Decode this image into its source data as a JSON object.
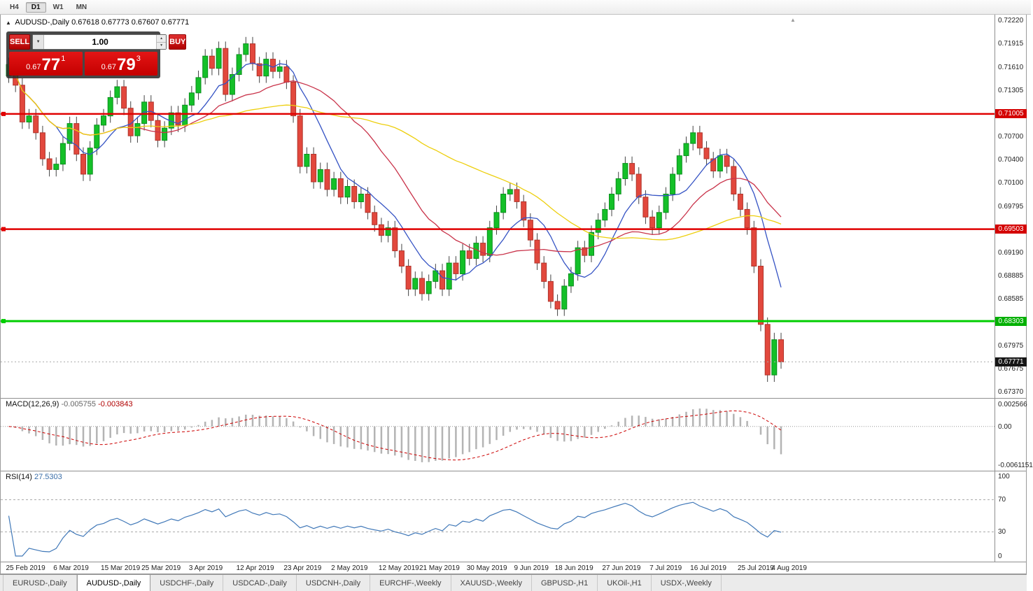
{
  "toolbar": {
    "timeframes": [
      {
        "label": "H4",
        "active": false
      },
      {
        "label": "D1",
        "active": true
      },
      {
        "label": "W1",
        "active": false
      },
      {
        "label": "MN",
        "active": false
      }
    ]
  },
  "chart": {
    "symbol_title": "AUDUSD-,Daily",
    "ohlc_text": "0.67618 0.67773 0.67607 0.67771"
  },
  "trade_panel": {
    "sell_label": "SELL",
    "buy_label": "BUY",
    "volume": "1.00",
    "sell_price": {
      "prefix": "0.67",
      "big": "77",
      "sup": "1"
    },
    "buy_price": {
      "prefix": "0.67",
      "big": "79",
      "sup": "3"
    }
  },
  "price_axis": {
    "ticks": [
      "0.72220",
      "0.71915",
      "0.71610",
      "0.71305",
      "0.70700",
      "0.70400",
      "0.70100",
      "0.69795",
      "0.69190",
      "0.68885",
      "0.68585",
      "0.67975",
      "0.67675",
      "0.67370"
    ]
  },
  "macd_panel": {
    "name": "MACD(12,26,9)",
    "value_main": "-0.005755",
    "value_signal": "-0.003843"
  },
  "rsi_panel": {
    "name": "RSI(14)",
    "value": "27.5303"
  },
  "tabs": [
    {
      "label": "EURUSD-,Daily",
      "active": false
    },
    {
      "label": "AUDUSD-,Daily",
      "active": true
    },
    {
      "label": "USDCHF-,Daily",
      "active": false
    },
    {
      "label": "USDCAD-,Daily",
      "active": false
    },
    {
      "label": "USDCNH-,Daily",
      "active": false
    },
    {
      "label": "EURCHF-,Weekly",
      "active": false
    },
    {
      "label": "XAUUSD-,Weekly",
      "active": false
    },
    {
      "label": "GBPUSD-,H1",
      "active": false
    },
    {
      "label": "UKOil-,H1",
      "active": false
    },
    {
      "label": "USDX-,Weekly",
      "active": false
    }
  ],
  "chart_data": {
    "type": "candlestick",
    "symbol": "AUDUSD-",
    "timeframe": "Daily",
    "current": {
      "open": 0.67618,
      "high": 0.67773,
      "low": 0.67607,
      "close": 0.67771,
      "bid": "0.67771",
      "ask": "0.67793"
    },
    "ylim": [
      0.673,
      0.723
    ],
    "first_open": 0.715,
    "wick": 0.0009,
    "closes": [
      0.7165,
      0.7138,
      0.709,
      0.7098,
      0.7076,
      0.7042,
      0.7028,
      0.7035,
      0.7062,
      0.7088,
      0.7048,
      0.7022,
      0.7056,
      0.7086,
      0.7098,
      0.7122,
      0.7136,
      0.7108,
      0.7072,
      0.7088,
      0.7116,
      0.7092,
      0.7066,
      0.7082,
      0.7102,
      0.7086,
      0.7112,
      0.7128,
      0.7148,
      0.7176,
      0.716,
      0.7186,
      0.7126,
      0.7152,
      0.7178,
      0.7192,
      0.7166,
      0.715,
      0.7172,
      0.7156,
      0.7162,
      0.7142,
      0.7098,
      0.7032,
      0.7048,
      0.7012,
      0.7028,
      0.7002,
      0.7016,
      0.6992,
      0.7006,
      0.6986,
      0.6996,
      0.6972,
      0.6956,
      0.6942,
      0.6952,
      0.6922,
      0.6902,
      0.6872,
      0.6886,
      0.6866,
      0.6882,
      0.6896,
      0.6872,
      0.6906,
      0.6892,
      0.6922,
      0.6912,
      0.6932,
      0.6916,
      0.6952,
      0.6972,
      0.6996,
      0.7002,
      0.6986,
      0.6962,
      0.6936,
      0.6906,
      0.6882,
      0.6856,
      0.6846,
      0.6876,
      0.6892,
      0.6926,
      0.6916,
      0.6946,
      0.6962,
      0.6976,
      0.6996,
      0.7016,
      0.7036,
      0.7022,
      0.6992,
      0.6966,
      0.6952,
      0.6972,
      0.6996,
      0.7022,
      0.7046,
      0.7062,
      0.7076,
      0.7056,
      0.7042,
      0.7026,
      0.7046,
      0.7032,
      0.6996,
      0.6976,
      0.6952,
      0.6902,
      0.6826,
      0.676,
      0.6806,
      0.67771
    ],
    "x_labels": [
      {
        "label": "25 Feb 2019",
        "i": 0
      },
      {
        "label": "6 Mar 2019",
        "i": 7
      },
      {
        "label": "15 Mar 2019",
        "i": 14
      },
      {
        "label": "25 Mar 2019",
        "i": 20
      },
      {
        "label": "3 Apr 2019",
        "i": 27
      },
      {
        "label": "12 Apr 2019",
        "i": 34
      },
      {
        "label": "23 Apr 2019",
        "i": 41
      },
      {
        "label": "2 May 2019",
        "i": 48
      },
      {
        "label": "12 May 2019",
        "i": 55
      },
      {
        "label": "21 May 2019",
        "i": 61
      },
      {
        "label": "30 May 2019",
        "i": 68
      },
      {
        "label": "9 Jun 2019",
        "i": 75
      },
      {
        "label": "18 Jun 2019",
        "i": 81
      },
      {
        "label": "27 Jun 2019",
        "i": 88
      },
      {
        "label": "7 Jul 2019",
        "i": 95
      },
      {
        "label": "16 Jul 2019",
        "i": 101
      },
      {
        "label": "25 Jul 2019",
        "i": 108
      },
      {
        "label": "4 Aug 2019",
        "i": 113
      }
    ],
    "moving_averages": [
      {
        "period": 8,
        "color": "#3553c4",
        "name": "fast-ma-blue"
      },
      {
        "period": 20,
        "color": "#c9334a",
        "name": "medium-ma-red"
      },
      {
        "period": 45,
        "color": "#edcf0e",
        "name": "slow-ma-yellow"
      }
    ],
    "levels": [
      {
        "label": "0.71005",
        "value": 0.71005,
        "kind": "resistance",
        "color": "#e00000",
        "box": "#d40000",
        "width": 2.5
      },
      {
        "label": "0.69503",
        "value": 0.69503,
        "kind": "resistance",
        "color": "#e00000",
        "box": "#d40000",
        "width": 2.5
      },
      {
        "label": "0.68303",
        "value": 0.68303,
        "kind": "support",
        "color": "#00ce00",
        "box": "#00b000",
        "width": 3
      },
      {
        "label": "0.67771",
        "value": 0.67771,
        "kind": "current-price",
        "color": "#aaaaaa",
        "box": "#151515",
        "width": 1
      }
    ],
    "macd": {
      "params": "12,26,9",
      "value": -0.005755,
      "signal_value": -0.003843,
      "hist_color": "#b4b4b4",
      "signal_color": "#cc0000",
      "axis": [
        "0.002566",
        "0.00",
        "-0.0061151"
      ]
    },
    "rsi": {
      "period": 14,
      "value": 27.5303,
      "color": "#4078b8",
      "levels": [
        70,
        30
      ],
      "axis": [
        "100",
        "70",
        "30",
        "0"
      ]
    }
  }
}
